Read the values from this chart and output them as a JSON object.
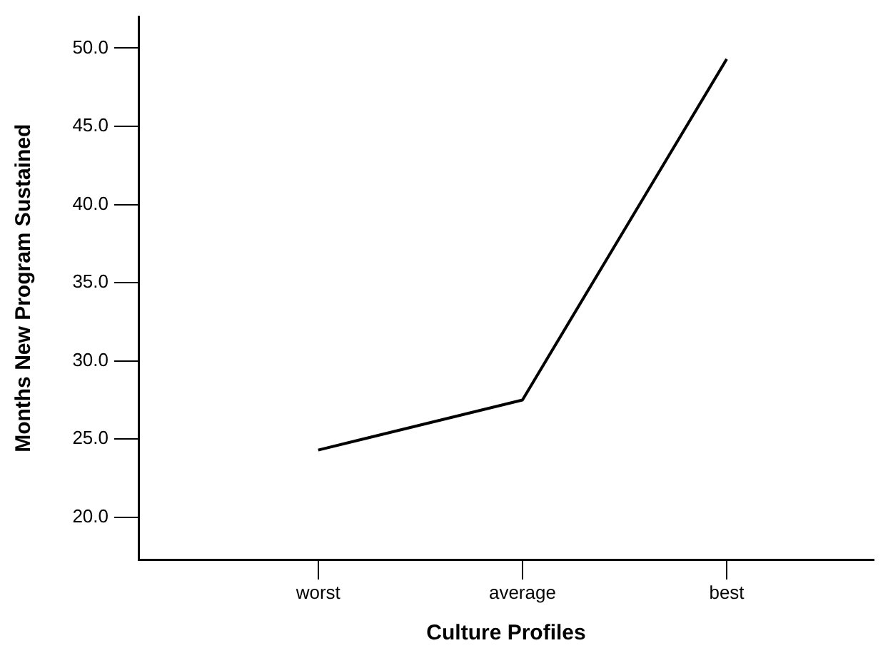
{
  "chart_data": {
    "type": "line",
    "xlabel": "Culture Profiles",
    "ylabel": "Months New Program Sustained",
    "categories": [
      "worst",
      "average",
      "best"
    ],
    "series": [
      {
        "color": "#000000",
        "values": [
          24.3,
          27.5,
          49.3
        ]
      }
    ],
    "ylim": [
      17.3,
      52
    ],
    "yticks": [
      {
        "value": 20,
        "label": "20.0"
      },
      {
        "value": 25,
        "label": "25.0"
      },
      {
        "value": 30,
        "label": "30.0"
      },
      {
        "value": 35,
        "label": "35.0"
      },
      {
        "value": 40,
        "label": "40.0"
      },
      {
        "value": 45,
        "label": "45.0"
      },
      {
        "value": 50,
        "label": "50.0"
      }
    ],
    "grid": false,
    "legend": false,
    "marker": "none",
    "line_style": "solid"
  }
}
